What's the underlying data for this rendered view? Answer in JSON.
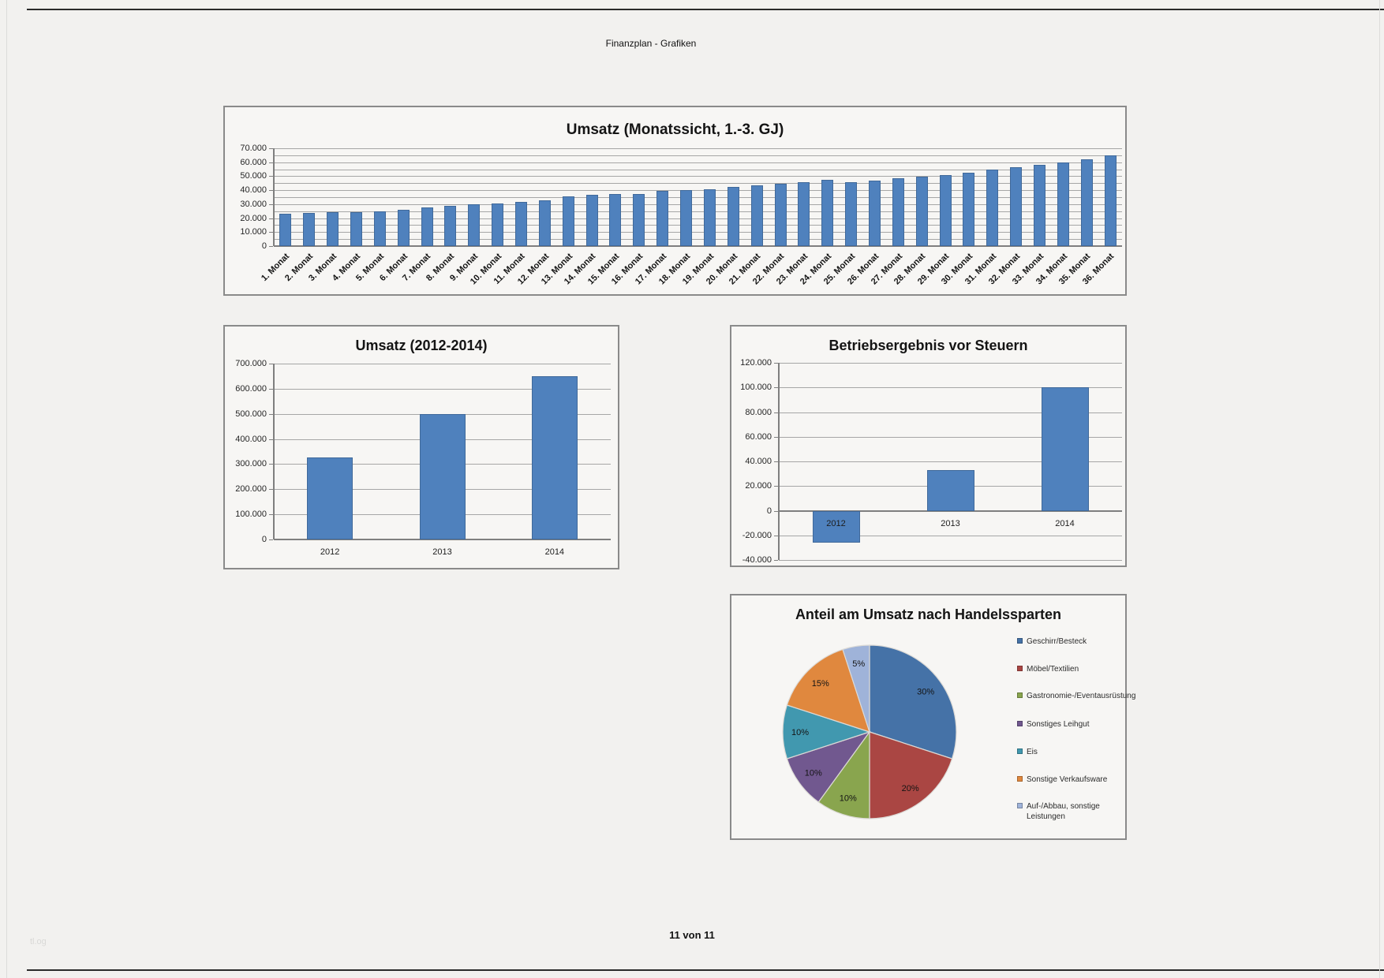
{
  "page": {
    "header_title": "Finanzplan - Grafiken",
    "footer": "11 von 11",
    "watermark": "tl.og"
  },
  "colors": {
    "bar": "#4f81bd",
    "page_background": "#f2f1ef",
    "chart_background": "#f7f6f4",
    "gridline": "#a6a6a6",
    "axis": "#7f7f7f"
  },
  "chart_data": [
    {
      "id": "umsatz-monatssicht",
      "type": "bar",
      "title": "Umsatz (Monatssicht, 1.-3. GJ)",
      "categories": [
        "1. Monat",
        "2. Monat",
        "3. Monat",
        "4. Monat",
        "5. Monat",
        "6. Monat",
        "7. Monat",
        "8. Monat",
        "9. Monat",
        "10. Monat",
        "11. Monat",
        "12. Monat",
        "13. Monat",
        "14. Monat",
        "15. Monat",
        "16. Monat",
        "17. Monat",
        "18. Monat",
        "19. Monat",
        "20. Monat",
        "21. Monat",
        "22. Monat",
        "23. Monat",
        "24. Monat",
        "25. Monat",
        "26. Monat",
        "27. Monat",
        "28. Monat",
        "29. Monat",
        "30. Monat",
        "31. Monat",
        "32. Monat",
        "33. Monat",
        "34. Monat",
        "35. Monat",
        "36. Monat"
      ],
      "values": [
        23000,
        23500,
        24500,
        24500,
        25000,
        26000,
        27500,
        29000,
        30000,
        30500,
        31500,
        33000,
        35500,
        36500,
        37500,
        37500,
        39500,
        40000,
        40500,
        42500,
        43500,
        44500,
        46000,
        47500,
        45500,
        47000,
        48500,
        49500,
        51000,
        52500,
        54500,
        56500,
        58000,
        60000,
        62000,
        65000
      ],
      "ylim": [
        0,
        70000
      ],
      "ytick_label_step": 10000,
      "gridline_step": 5000,
      "grid": "on",
      "legend_position": "none",
      "xlabel": "",
      "ylabel": ""
    },
    {
      "id": "umsatz-jahre",
      "type": "bar",
      "title": "Umsatz (2012-2014)",
      "categories": [
        "2012",
        "2013",
        "2014"
      ],
      "values": [
        325000,
        500000,
        650000
      ],
      "ylim": [
        0,
        700000
      ],
      "ytick_label_step": 100000,
      "gridline_step": 100000,
      "grid": "on",
      "legend_position": "none",
      "xlabel": "",
      "ylabel": ""
    },
    {
      "id": "betriebsergebnis",
      "type": "bar",
      "title": "Betriebsergebnis vor Steuern",
      "categories": [
        "2012",
        "2013",
        "2014"
      ],
      "values": [
        -26000,
        33000,
        100000
      ],
      "ylim": [
        -40000,
        120000
      ],
      "ytick_label_step": 20000,
      "gridline_step": 20000,
      "grid": "on",
      "legend_position": "none",
      "xlabel": "",
      "ylabel": ""
    },
    {
      "id": "anteil-handelssparten",
      "type": "pie",
      "title": "Anteil am Umsatz nach Handelssparten",
      "legend_position": "right",
      "slices": [
        {
          "label": "Geschirr/Besteck",
          "pct": 30,
          "pct_label": "30%",
          "color": "#4572A7"
        },
        {
          "label": "Möbel/Textilien",
          "pct": 20,
          "pct_label": "20%",
          "color": "#AA4643"
        },
        {
          "label": "Gastronomie-/Eventausrüstung",
          "pct": 10,
          "pct_label": "10%",
          "color": "#89A54E"
        },
        {
          "label": "Sonstiges Leihgut",
          "pct": 10,
          "pct_label": "10%",
          "color": "#71588F"
        },
        {
          "label": "Eis",
          "pct": 10,
          "pct_label": "10%",
          "color": "#4198AF"
        },
        {
          "label": "Sonstige Verkaufsware",
          "pct": 15,
          "pct_label": "15%",
          "color": "#E0883E"
        },
        {
          "label": "Auf-/Abbau, sonstige Leistungen",
          "pct": 5,
          "pct_label": "5%",
          "color": "#9FB3D9"
        }
      ]
    }
  ]
}
